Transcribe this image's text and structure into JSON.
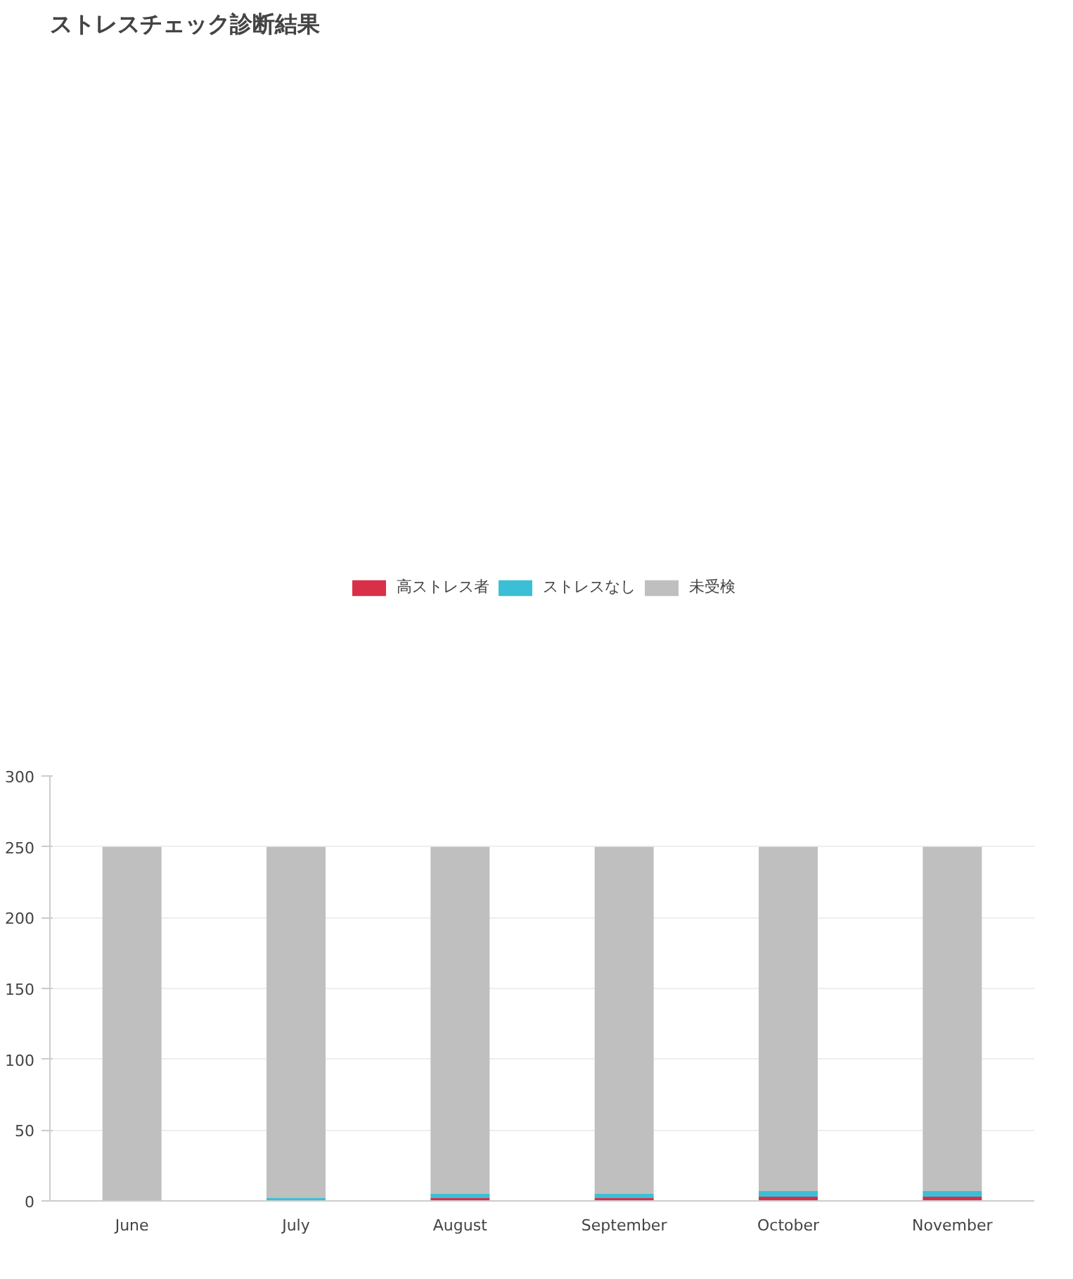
{
  "chart_data": {
    "type": "bar",
    "title": "ストレスチェック診断結果",
    "stacked": true,
    "categories": [
      "June",
      "July",
      "August",
      "September",
      "October",
      "November"
    ],
    "series": [
      {
        "name": "高ストレス者",
        "color": "#d9304a",
        "values": [
          0,
          0,
          2,
          2,
          3,
          3
        ]
      },
      {
        "name": "ストレスなし",
        "color": "#3bbfd6",
        "values": [
          0,
          2,
          3,
          3,
          4,
          4
        ]
      },
      {
        "name": "未受検",
        "color": "#bfbfbf",
        "values": [
          250,
          248,
          245,
          245,
          243,
          243
        ]
      }
    ],
    "ylim": [
      0,
      300
    ],
    "yticks": [
      0,
      50,
      100,
      150,
      200,
      250,
      300
    ],
    "grid": "y",
    "legend": "top"
  }
}
